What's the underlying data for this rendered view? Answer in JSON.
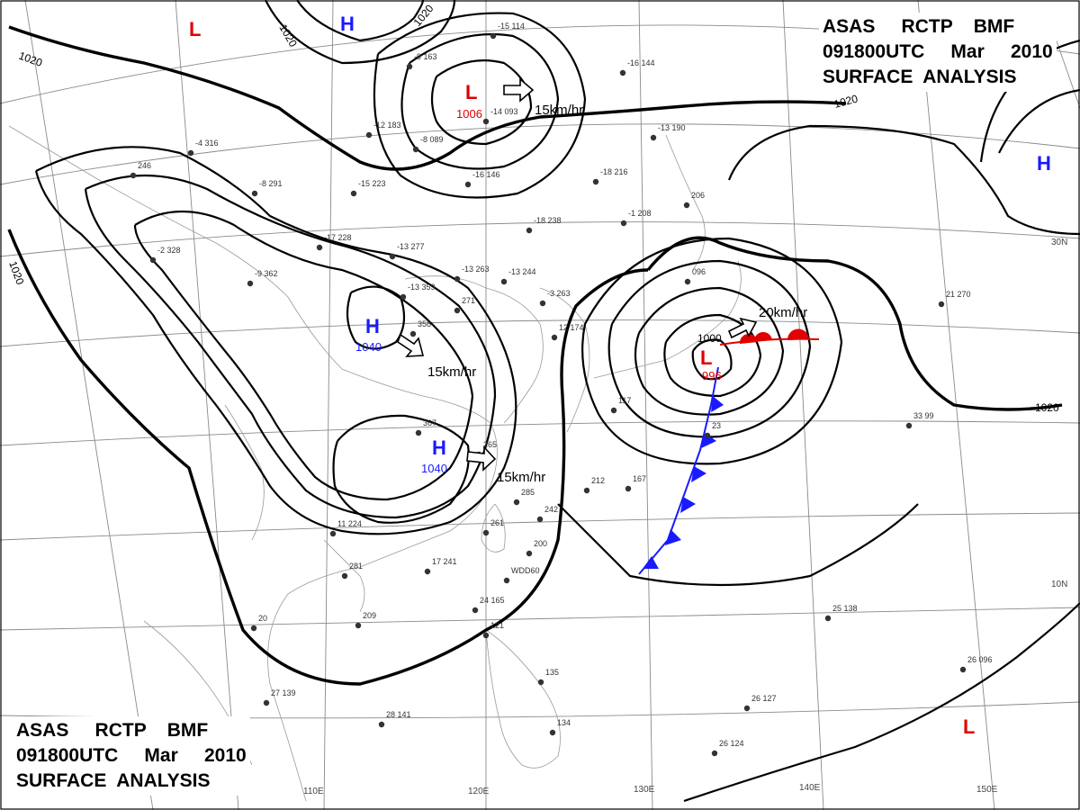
{
  "title": {
    "line1": [
      "ASAS",
      "RCTP",
      "BMF"
    ],
    "line2": [
      "091800UTC",
      "Mar",
      "2010"
    ],
    "line3": "SURFACE  ANALYSIS"
  },
  "isobar_labels": [
    {
      "text": "1020"
    },
    {
      "text": "1020"
    },
    {
      "text": "1020"
    },
    {
      "text": "1020"
    },
    {
      "text": "1020"
    },
    {
      "text": "1000"
    }
  ],
  "lon_labels": [
    "110E",
    "120E",
    "130E",
    "140E",
    "150E"
  ],
  "lat_labels": [
    "30N",
    "10N"
  ],
  "pressure_centers": [
    {
      "type": "L",
      "value": "",
      "color": "#e00000"
    },
    {
      "type": "H",
      "value": "",
      "color": "#1a1aff"
    },
    {
      "type": "L",
      "value": "1006",
      "color": "#e00000"
    },
    {
      "type": "H",
      "value": "",
      "color": "#1a1aff"
    },
    {
      "type": "H",
      "value": "1040",
      "color": "#1a1aff"
    },
    {
      "type": "H",
      "value": "1040",
      "color": "#1a1aff"
    },
    {
      "type": "L",
      "value": "996",
      "color": "#e00000"
    },
    {
      "type": "L",
      "value": "",
      "color": "#e00000"
    }
  ],
  "motion_vectors": [
    {
      "text": "15km/hr"
    },
    {
      "text": "15km/hr"
    },
    {
      "text": "15km/hr"
    },
    {
      "text": "20km/hr"
    }
  ],
  "station_samples": [
    "-15 114",
    "-9 163",
    "-14 093",
    "-8 089",
    "-16 146",
    "-16 144",
    "-4 316",
    "246",
    "-8 291",
    "-15 223",
    "-18 216",
    "-13 190",
    "-12 183",
    "-1 208",
    "206",
    "-18 238",
    "-17 228",
    "-13 277",
    "-2 328",
    "-9 362",
    "-13 263",
    "-13 244",
    "-13 359",
    "271",
    "358",
    "096",
    "21 270",
    "367",
    "265",
    "-3 263",
    "12 174",
    "117",
    "23",
    "33 99",
    "285",
    "212",
    "167",
    "242",
    "261",
    "200",
    "11 224",
    "17 241",
    "281",
    "209",
    "24 165",
    "121",
    "135",
    "20",
    "27 139",
    "28 141",
    "134",
    "25 138",
    "26 096",
    "26 127",
    "26 124",
    "WDD60"
  ],
  "colors": {
    "high": "#1a1aff",
    "low": "#e00000",
    "cold_front": "#1a1aff",
    "warm_front": "#e00000"
  }
}
